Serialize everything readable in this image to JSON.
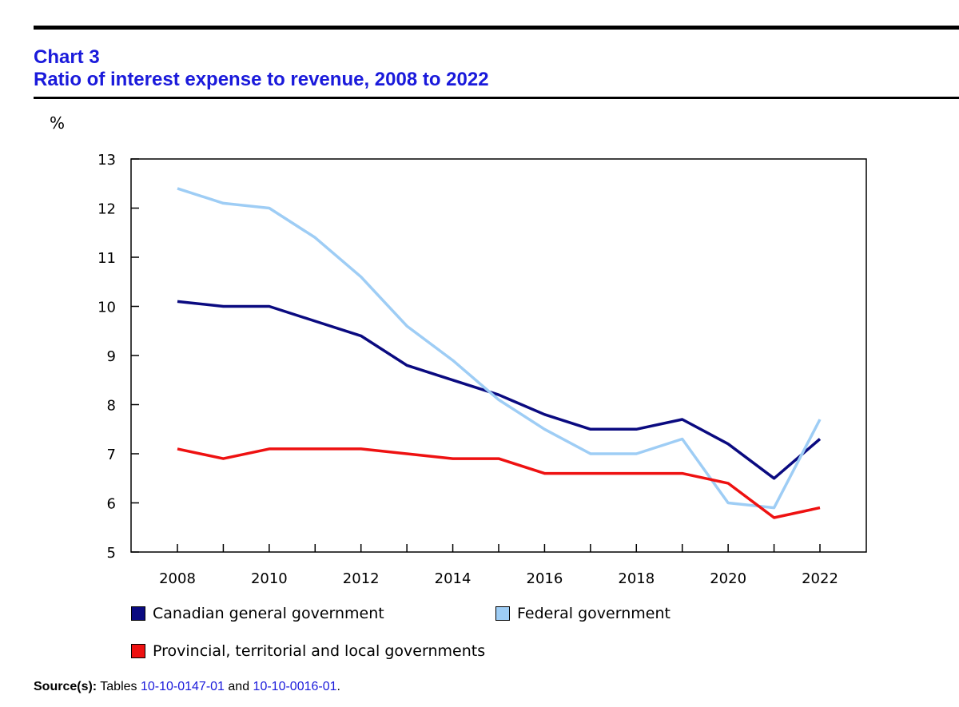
{
  "header": {
    "chart_number": "Chart 3",
    "title": "Ratio of interest expense to revenue, 2008 to 2022"
  },
  "chart_data": {
    "type": "line",
    "title": "Ratio of interest expense to revenue, 2008 to 2022",
    "ylabel": "%",
    "xlabel": "",
    "ylim": [
      5,
      13
    ],
    "yticks": [
      5,
      6,
      7,
      8,
      9,
      10,
      11,
      12,
      13
    ],
    "x": [
      2008,
      2009,
      2010,
      2011,
      2012,
      2013,
      2014,
      2015,
      2016,
      2017,
      2018,
      2019,
      2020,
      2021,
      2022
    ],
    "xtick_labels": [
      "2008",
      "2010",
      "2012",
      "2014",
      "2016",
      "2018",
      "2020",
      "2022"
    ],
    "grid": false,
    "legend_position": "bottom",
    "series": [
      {
        "name": "Canadian general government",
        "color": "#0a0a80",
        "values": [
          10.1,
          10.0,
          10.0,
          9.7,
          9.4,
          8.8,
          8.5,
          8.2,
          7.8,
          7.5,
          7.5,
          7.7,
          7.2,
          6.5,
          7.3
        ]
      },
      {
        "name": "Federal government",
        "color": "#9ecdf5",
        "values": [
          12.4,
          12.1,
          12.0,
          11.4,
          10.6,
          9.6,
          8.9,
          8.1,
          7.5,
          7.0,
          7.0,
          7.3,
          6.0,
          5.9,
          7.7
        ]
      },
      {
        "name": "Provincial, territorial and local governments",
        "color": "#ee1111",
        "values": [
          7.1,
          6.9,
          7.1,
          7.1,
          7.1,
          7.0,
          6.9,
          6.9,
          6.6,
          6.6,
          6.6,
          6.6,
          6.4,
          5.7,
          5.9
        ]
      }
    ]
  },
  "source": {
    "label": "Source(s):",
    "text_before": " Tables ",
    "link1": "10-10-0147-01",
    "text_mid": " and ",
    "link2": "10-10-0016-01",
    "text_after": "."
  }
}
